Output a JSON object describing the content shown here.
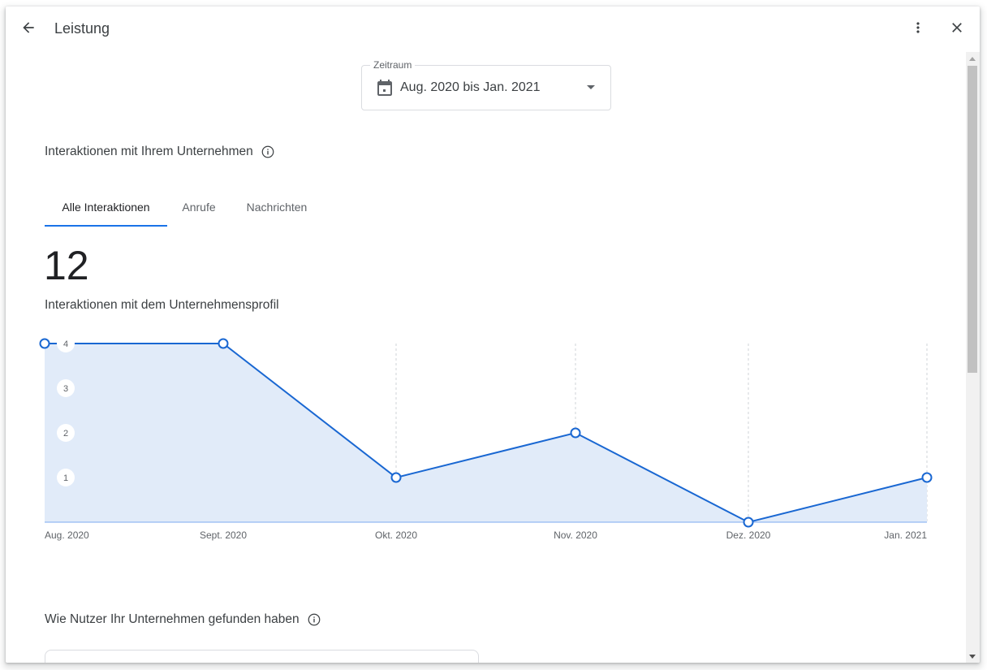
{
  "header": {
    "title": "Leistung",
    "back_icon": "arrow-back-icon",
    "more_icon": "more-vert-icon",
    "close_icon": "close-icon"
  },
  "date_range": {
    "label": "Zeitraum",
    "value": "Aug. 2020 bis Jan. 2021",
    "icon": "calendar-icon"
  },
  "interactions": {
    "section_title": "Interaktionen mit Ihrem Unternehmen",
    "tabs": [
      {
        "label": "Alle Interaktionen",
        "active": true
      },
      {
        "label": "Anrufe",
        "active": false
      },
      {
        "label": "Nachrichten",
        "active": false
      }
    ],
    "total": "12",
    "caption": "Interaktionen mit dem Unternehmensprofil"
  },
  "chart_data": {
    "type": "area",
    "categories": [
      "Aug. 2020",
      "Sept. 2020",
      "Okt. 2020",
      "Nov. 2020",
      "Dez. 2020",
      "Jan. 2021"
    ],
    "series": [
      {
        "values": [
          4,
          4,
          1,
          2,
          0,
          1
        ]
      }
    ],
    "y_ticks": [
      1,
      2,
      3,
      4
    ],
    "ylim": [
      0,
      4
    ],
    "grid": true,
    "colors": {
      "line": "#1967d2",
      "fill": "#e1ebf9"
    }
  },
  "found": {
    "section_title": "Wie Nutzer Ihr Unternehmen gefunden haben"
  },
  "colors": {
    "accent": "#1a73e8"
  }
}
